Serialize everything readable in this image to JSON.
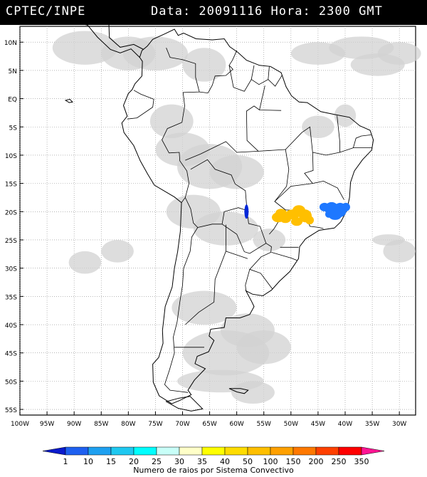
{
  "header": {
    "source": "CPTEC/INPE",
    "datetime": "Data: 20091116 Hora: 2300 GMT"
  },
  "map": {
    "lat_labels": [
      "10N",
      "5N",
      "EQ",
      "5S",
      "10S",
      "15S",
      "20S",
      "25S",
      "30S",
      "35S",
      "40S",
      "45S",
      "50S",
      "55S"
    ],
    "lat_values": [
      10,
      5,
      0,
      -5,
      -10,
      -15,
      -20,
      -25,
      -30,
      -35,
      -40,
      -45,
      -50,
      -55
    ],
    "lon_labels": [
      "100W",
      "95W",
      "90W",
      "85W",
      "80W",
      "75W",
      "70W",
      "65W",
      "60W",
      "55W",
      "50W",
      "45W",
      "40W",
      "35W",
      "30W"
    ],
    "lon_values": [
      -100,
      -95,
      -90,
      -85,
      -80,
      -75,
      -70,
      -65,
      -60,
      -55,
      -50,
      -45,
      -40,
      -35,
      -30
    ],
    "extent": {
      "lon_min": -100,
      "lon_max": -27,
      "lat_min": -56,
      "lat_max": 12.8
    },
    "colors": {
      "cloud": "#d2d2d2",
      "coast": "#000000",
      "grid": "#8a8a8a"
    }
  },
  "storm_cells": [
    {
      "name": "blue-cell-west",
      "lon": -58.2,
      "lat": -20.0,
      "category": "1",
      "color": "#0028d8"
    },
    {
      "name": "orange-cluster",
      "lon": -50.5,
      "lat": -20.5,
      "category": "50",
      "color": "#ffbf00"
    },
    {
      "name": "blue-cluster-east",
      "lon": -42.5,
      "lat": -19.7,
      "category": "10",
      "color": "#1e78ff"
    }
  ],
  "legend": {
    "caption": "Numero de raios por Sistema Convectivo",
    "labels": [
      "1",
      "10",
      "15",
      "20",
      "25",
      "30",
      "35",
      "40",
      "50",
      "100",
      "150",
      "200",
      "250",
      "350"
    ],
    "colors": [
      "#0a1acc",
      "#1e60f0",
      "#1ea0f0",
      "#1ec8f0",
      "#00ffff",
      "#c8fff8",
      "#ffffc8",
      "#ffff00",
      "#ffdc00",
      "#ffbf00",
      "#ffa000",
      "#ff7800",
      "#ff4000",
      "#ff0000",
      "#ff1493"
    ]
  }
}
